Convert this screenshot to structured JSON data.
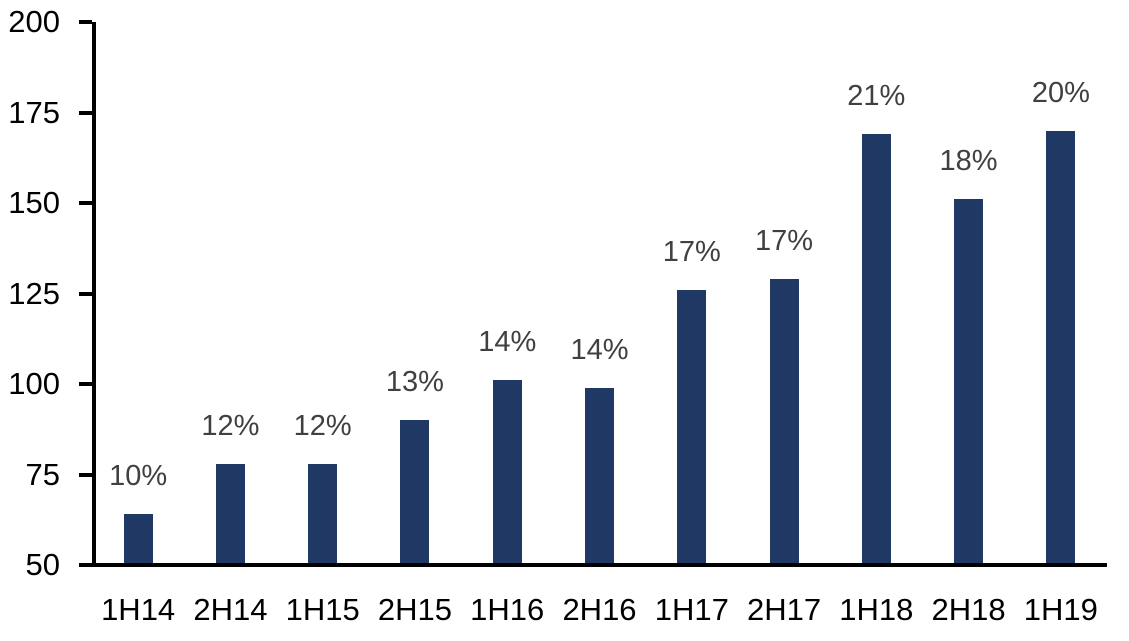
{
  "chart_data": {
    "type": "bar",
    "title": "",
    "xlabel": "",
    "ylabel": "",
    "categories": [
      "1H14",
      "2H14",
      "1H15",
      "2H15",
      "1H16",
      "2H16",
      "1H17",
      "2H17",
      "1H18",
      "2H18",
      "1H19"
    ],
    "values": [
      64,
      78,
      78,
      90,
      101,
      99,
      126,
      129,
      169,
      151,
      170
    ],
    "bar_labels": [
      "10%",
      "12%",
      "12%",
      "13%",
      "14%",
      "14%",
      "17%",
      "17%",
      "21%",
      "18%",
      "20%"
    ],
    "ylim": [
      50,
      200
    ],
    "yticks": [
      50,
      75,
      100,
      125,
      150,
      175,
      200
    ],
    "grid": false,
    "legend": "none",
    "bar_color": "#203864",
    "bar_label_color": "#404040",
    "axis_color": "#000000"
  }
}
